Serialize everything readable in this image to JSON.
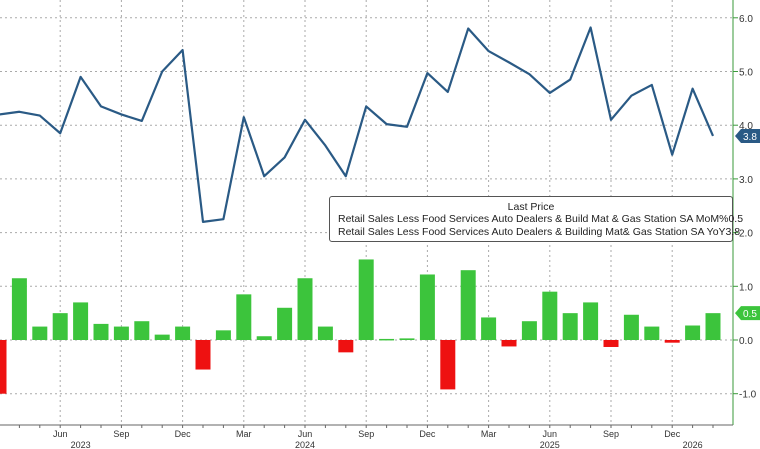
{
  "chart_data": {
    "type": "bar+line",
    "legend_title": "Last Price",
    "legend_position": "center-right",
    "grid": true,
    "ylim": [
      -1.5,
      6.3
    ],
    "yticks": [
      "6.0",
      "5.0",
      "4.0",
      "3.0",
      "2.0",
      "1.0",
      "0.0",
      "-1.0"
    ],
    "ytick_values": [
      6,
      5,
      4,
      3,
      2,
      1,
      0,
      -1
    ],
    "x": [
      "2023-03",
      "2023-04",
      "2023-05",
      "2023-06",
      "2023-07",
      "2023-08",
      "2023-09",
      "2023-10",
      "2023-11",
      "2023-12",
      "2024-01",
      "2024-02",
      "2024-03",
      "2024-04",
      "2024-05",
      "2024-06",
      "2024-07",
      "2024-08",
      "2024-09",
      "2024-10",
      "2024-11",
      "2024-12",
      "2025-01",
      "2025-02",
      "2025-03",
      "2025-04",
      "2025-05",
      "2025-06",
      "2025-07",
      "2025-08",
      "2025-09",
      "2025-10",
      "2025-11",
      "2025-12",
      "2026-01",
      "2026-02"
    ],
    "month_ticks": [
      {
        "label": "Jun",
        "date": "2023-06"
      },
      {
        "label": "Sep",
        "date": "2023-09"
      },
      {
        "label": "Dec",
        "date": "2023-12"
      },
      {
        "label": "Mar",
        "date": "2024-03"
      },
      {
        "label": "Jun",
        "date": "2024-06"
      },
      {
        "label": "Sep",
        "date": "2024-09"
      },
      {
        "label": "Dec",
        "date": "2024-12"
      },
      {
        "label": "Mar",
        "date": "2025-03"
      },
      {
        "label": "Jun",
        "date": "2025-06"
      },
      {
        "label": "Sep",
        "date": "2025-09"
      },
      {
        "label": "Dec",
        "date": "2025-12"
      }
    ],
    "year_labels": [
      {
        "label": "2023",
        "date": "2023-07"
      },
      {
        "label": "2024",
        "date": "2024-06"
      },
      {
        "label": "2025",
        "date": "2025-06"
      },
      {
        "label": "2026",
        "date": "2026-01"
      }
    ],
    "series": [
      {
        "name": "Retail Sales Less Food Services Auto Dealers & Build Mat & Gas Station SA MoM%",
        "last": "0.5",
        "type": "bar",
        "color_pos": "#3cc43c",
        "color_neg": "#ee1111",
        "values": [
          -1.0,
          1.15,
          0.25,
          0.5,
          0.7,
          0.3,
          0.25,
          0.35,
          0.1,
          0.25,
          -0.55,
          0.18,
          0.85,
          0.07,
          0.6,
          1.15,
          0.25,
          -0.23,
          1.5,
          0.02,
          0.03,
          1.22,
          -0.92,
          1.3,
          0.42,
          -0.12,
          0.35,
          0.9,
          0.5,
          0.7,
          -0.13,
          0.47,
          0.25,
          -0.05,
          0.27,
          0.5
        ]
      },
      {
        "name": "Retail Sales Less Food Services Auto Dealers & Building Mat& Gas Station SA YoY",
        "last": "3.8",
        "type": "line",
        "color": "#2a5a85",
        "values": [
          4.2,
          4.25,
          4.18,
          3.85,
          4.9,
          4.35,
          4.2,
          4.08,
          5.0,
          5.4,
          2.2,
          2.25,
          4.15,
          3.05,
          3.4,
          4.1,
          3.62,
          3.05,
          4.35,
          4.02,
          3.97,
          4.97,
          4.62,
          5.8,
          5.38,
          5.17,
          4.95,
          4.6,
          4.85,
          5.82,
          4.1,
          4.55,
          4.75,
          3.45,
          4.68,
          3.8
        ]
      }
    ]
  }
}
